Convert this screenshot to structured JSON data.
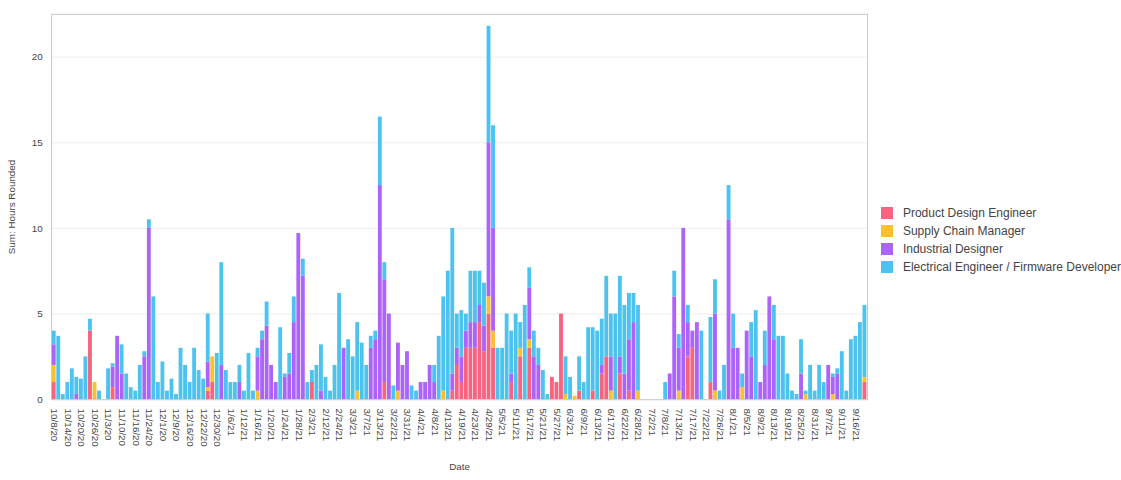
{
  "chart_data": {
    "type": "bar",
    "stacked": true,
    "grid": true,
    "legend": "right",
    "xlabel": "Date",
    "ylabel": "Sum: Hours Rounded",
    "ylim": [
      0,
      22.5
    ],
    "yticks": [
      0,
      5,
      10,
      15,
      20
    ],
    "categories": [
      "10/8/20",
      null,
      null,
      "10/14/20",
      null,
      null,
      "10/20/20",
      null,
      null,
      "10/26/20",
      null,
      null,
      "11/3/20",
      null,
      null,
      "11/10/20",
      null,
      null,
      "11/16/20",
      null,
      null,
      "11/24/20",
      null,
      null,
      "12/1/20",
      null,
      null,
      "12/9/20",
      null,
      null,
      "12/16/20",
      null,
      null,
      "12/22/20",
      null,
      null,
      "12/30/20",
      null,
      null,
      "1/6/21",
      null,
      null,
      "1/12/21",
      null,
      null,
      "1/16/21",
      null,
      null,
      "1/20/21",
      null,
      null,
      "1/24/21",
      null,
      null,
      "1/28/21",
      null,
      null,
      "2/3/21",
      null,
      null,
      "2/12/21",
      null,
      null,
      "2/24/21",
      null,
      null,
      "3/3/21",
      null,
      null,
      "3/7/21",
      null,
      null,
      "3/13/21",
      null,
      null,
      "3/22/21",
      null,
      null,
      "3/31/21",
      null,
      null,
      "4/4/21",
      null,
      null,
      "4/8/21",
      null,
      null,
      "4/13/21",
      null,
      null,
      "4/19/21",
      null,
      null,
      "4/23/21",
      null,
      null,
      "4/29/21",
      null,
      null,
      "5/5/21",
      null,
      null,
      "5/11/21",
      null,
      null,
      "5/17/21",
      null,
      null,
      "5/21/21",
      null,
      null,
      "5/27/21",
      null,
      null,
      "6/3/21",
      null,
      null,
      "6/9/21",
      null,
      null,
      "6/13/21",
      null,
      null,
      "6/17/21",
      null,
      null,
      "6/22/21",
      null,
      null,
      "6/28/21",
      null,
      null,
      "7/2/21",
      null,
      null,
      "7/8/21",
      null,
      null,
      "7/13/21",
      null,
      null,
      "7/17/21",
      null,
      null,
      "7/22/21",
      null,
      null,
      "7/26/21",
      null,
      null,
      "8/1/21",
      null,
      null,
      "8/5/21",
      null,
      null,
      "8/9/21",
      null,
      null,
      "8/13/21",
      null,
      null,
      "8/19/21",
      null,
      null,
      "8/25/21",
      null,
      null,
      "8/31/21",
      null,
      null,
      "9/7/21",
      null,
      null,
      "9/11/21",
      null,
      null,
      "9/16/21",
      null,
      null
    ],
    "series": [
      {
        "name": "Product Design Engineer",
        "color": "#f8637f",
        "values": [
          1,
          0,
          0,
          0,
          0,
          0,
          0,
          0,
          4,
          0,
          0,
          0,
          0,
          0.7,
          0,
          0,
          0,
          0,
          0,
          0,
          0,
          0,
          0,
          0,
          0,
          0,
          0,
          0,
          0,
          0,
          0,
          0,
          0,
          0,
          0.5,
          1,
          0,
          0,
          0,
          0,
          0,
          0,
          0,
          0,
          0,
          0,
          0,
          0,
          0,
          0,
          0,
          0,
          0,
          0,
          0,
          0,
          0,
          1,
          0,
          0,
          0,
          0,
          0,
          0,
          0,
          0,
          0,
          0,
          0,
          0,
          0,
          0,
          0,
          1,
          0,
          0,
          0,
          0,
          0,
          0,
          0,
          0,
          0,
          0,
          0,
          0,
          0,
          0,
          0.5,
          2,
          1,
          3,
          3,
          3,
          4.5,
          2.8,
          5,
          3,
          0,
          0,
          0,
          1,
          0,
          2.5,
          0,
          3,
          0,
          0,
          0,
          0,
          1.3,
          1,
          5,
          0,
          0,
          0,
          0.5,
          0,
          0,
          0.5,
          0,
          1.5,
          2.5,
          0,
          0,
          1.5,
          0,
          0.5,
          0,
          0,
          0,
          0,
          0,
          0,
          0,
          0,
          0,
          0,
          0,
          0,
          2.5,
          3,
          0,
          0,
          0,
          1,
          0,
          0,
          0,
          0,
          0,
          0,
          0,
          0,
          0,
          0,
          0,
          0,
          0,
          0,
          0,
          0,
          0,
          0,
          0,
          0,
          0,
          0,
          0,
          0,
          0,
          0,
          0,
          0,
          0,
          0,
          0,
          0,
          0,
          1
        ]
      },
      {
        "name": "Supply Chain Manager",
        "color": "#fcc02f",
        "values": [
          1,
          0,
          0,
          0,
          0,
          0,
          0,
          0,
          0,
          1,
          0,
          0,
          0,
          0,
          0,
          0,
          0,
          0,
          0,
          0,
          0,
          0,
          0,
          0,
          0,
          0,
          0,
          0,
          0,
          0,
          0,
          0,
          0,
          0,
          0.2,
          1.5,
          0,
          0,
          0,
          0,
          0,
          0,
          0,
          0,
          0,
          0.5,
          0,
          0,
          0,
          0,
          0,
          0,
          0,
          0,
          0,
          0,
          0,
          0,
          0,
          0,
          0,
          0,
          0,
          0,
          0,
          0,
          0,
          0.5,
          0,
          0,
          0,
          0,
          0,
          0,
          0,
          0,
          0.5,
          0,
          0,
          0,
          0,
          0,
          0,
          0,
          0,
          0,
          0.5,
          0,
          0,
          0,
          0,
          0,
          0,
          0,
          0,
          0,
          1,
          1,
          0,
          0,
          0,
          0,
          0,
          0.5,
          0,
          0.5,
          0,
          0,
          0,
          0,
          0,
          0,
          0,
          0.3,
          0,
          0.2,
          0,
          0,
          0,
          0,
          0,
          0,
          0,
          0.5,
          0,
          0,
          0,
          0,
          0,
          0.5,
          0,
          0,
          0,
          0,
          0,
          0,
          0,
          0,
          0.5,
          0,
          0,
          0,
          0,
          0,
          0,
          0,
          0.5,
          0,
          0,
          0,
          0,
          0,
          0.7,
          0,
          0,
          0,
          0,
          0,
          0,
          0,
          0,
          0,
          0,
          0,
          0,
          0,
          0.3,
          0,
          0,
          0,
          0,
          0,
          0.3,
          0,
          0,
          0,
          0,
          0,
          0,
          0.3
        ]
      },
      {
        "name": "Industrial Designer",
        "color": "#ab63fa",
        "values": [
          1.2,
          0,
          0,
          0,
          0,
          0.3,
          0,
          0,
          0,
          0,
          0,
          0,
          0,
          1.2,
          3.7,
          1.5,
          0,
          0,
          0,
          0,
          2.5,
          10,
          0,
          0,
          0,
          0,
          0,
          0,
          0,
          0,
          0,
          0,
          0,
          0,
          1.5,
          0,
          0,
          2,
          0,
          0,
          0,
          1,
          0,
          0,
          0,
          2,
          3.5,
          4.3,
          2,
          1,
          0,
          1.3,
          1.5,
          4.5,
          9.7,
          7.2,
          0,
          0,
          0,
          0.5,
          0,
          0,
          0,
          0,
          3,
          0,
          0,
          0,
          0,
          0,
          3,
          3.5,
          12.5,
          6,
          5,
          0,
          2.8,
          2,
          2.8,
          0,
          0,
          1,
          1,
          2,
          1,
          0,
          0,
          0,
          1,
          1,
          1.5,
          1,
          1.5,
          1.5,
          1,
          1.5,
          9,
          6,
          0,
          0,
          0,
          0.5,
          0,
          0,
          0,
          3,
          2.5,
          2,
          0,
          0,
          0,
          0,
          0,
          0,
          0,
          0,
          0,
          0,
          0,
          0,
          0,
          0.5,
          0,
          2,
          0,
          1,
          1.5,
          3,
          4.5,
          0,
          0,
          0,
          0,
          0,
          0,
          0,
          1.5,
          6,
          2.5,
          10,
          2,
          1,
          4.5,
          0,
          0,
          0,
          4.5,
          0,
          0,
          10.5,
          3,
          3,
          0,
          4,
          2.5,
          0,
          1,
          2,
          6,
          3.5,
          0,
          0,
          0,
          0,
          0,
          1.5,
          0,
          0,
          0,
          0,
          0,
          2,
          1,
          1.5,
          0,
          0,
          0,
          0,
          0,
          0
        ]
      },
      {
        "name": "Electrical Engineer / Firmware Developer",
        "color": "#4cc3ee",
        "values": [
          0.8,
          3.7,
          0.3,
          1,
          1.8,
          1,
          1.2,
          2.5,
          0.7,
          0,
          0.5,
          0,
          1.8,
          0.2,
          0,
          1.7,
          1.5,
          0.7,
          0.5,
          2,
          0.3,
          0.5,
          6,
          1,
          2.2,
          0.5,
          1.2,
          0.3,
          3,
          2,
          1,
          3,
          1.7,
          1.2,
          2.8,
          0,
          2.7,
          6,
          1.7,
          1,
          1,
          1,
          0.5,
          2.7,
          0.5,
          0.5,
          0.5,
          1.4,
          0,
          0,
          4.2,
          0.2,
          1.2,
          1.5,
          0,
          1,
          1,
          0.7,
          2,
          2.7,
          1.3,
          0.5,
          2,
          6.2,
          0,
          3.5,
          2.5,
          4,
          3.3,
          2,
          0.7,
          0.5,
          4,
          1,
          0,
          0.8,
          0,
          0,
          0,
          0.8,
          0.5,
          0,
          0,
          0,
          1,
          3.7,
          5.5,
          7.5,
          8.5,
          2,
          2.7,
          1,
          3,
          3,
          2,
          2.5,
          6.8,
          6,
          3,
          3,
          5,
          2.5,
          5,
          1.5,
          5.5,
          1.2,
          1.5,
          1,
          1.7,
          0.3,
          0,
          0,
          0,
          2.2,
          1.3,
          0,
          2,
          1,
          4.2,
          3.7,
          4,
          2.7,
          4.7,
          2.5,
          5,
          4.7,
          4,
          2.7,
          1.7,
          5,
          0,
          0,
          0,
          0,
          0,
          1,
          0,
          1.5,
          0.8,
          0,
          1,
          0,
          0,
          4,
          0,
          3.8,
          2,
          0.5,
          2,
          2,
          2,
          0,
          0.8,
          0,
          2,
          5.2,
          0,
          2,
          0,
          2,
          3.7,
          3.7,
          1.5,
          0.5,
          0.3,
          2,
          0.2,
          2,
          0.5,
          2,
          1,
          0,
          0.2,
          0.3,
          2.8,
          0.5,
          3.5,
          3.7,
          4.5,
          4.2
        ]
      }
    ]
  }
}
